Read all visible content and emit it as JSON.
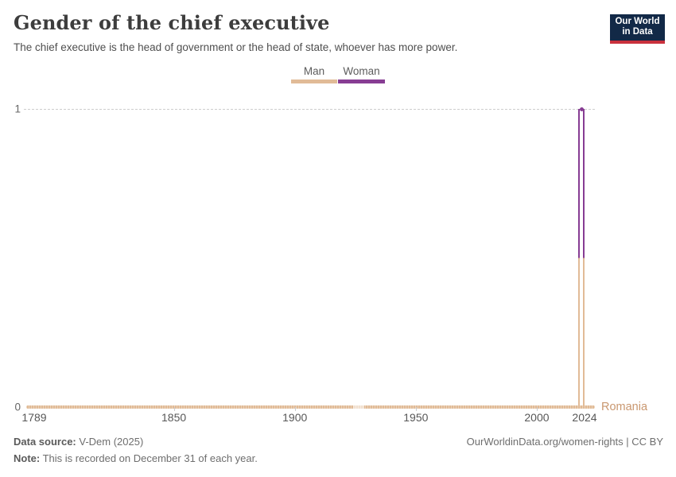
{
  "header": {
    "title": "Gender of the chief executive",
    "subtitle": "The chief executive is the head of government or the head of state, whoever has more power.",
    "logo_line1": "Our World",
    "logo_line2": "in Data"
  },
  "legend": [
    {
      "label": "Man",
      "color": "#E1BB97"
    },
    {
      "label": "Woman",
      "color": "#873D93"
    }
  ],
  "chart_data": {
    "type": "line",
    "title": "Gender of the chief executive",
    "entity": "Romania",
    "x_range": [
      1789,
      2024
    ],
    "y_range": [
      0,
      1
    ],
    "x_ticks": [
      1789,
      1850,
      1900,
      1950,
      2000,
      2024
    ],
    "y_ticks": [
      "0",
      "1"
    ],
    "value_encoding": {
      "0": "Man",
      "1": "Woman"
    },
    "series": [
      {
        "name": "Romania",
        "segments": [
          {
            "from": 1789,
            "to": 2017,
            "value": 0
          },
          {
            "from": 2018,
            "to": 2018,
            "value": 1
          },
          {
            "from": 2019,
            "to": 2024,
            "value": 0
          }
        ]
      }
    ],
    "sparse_segment": {
      "from": 1924,
      "to": 1928
    },
    "colors": {
      "man": "#E1BB97",
      "woman": "#873D93",
      "entity_label": "#C9976F"
    },
    "grid": "single dashed horizontal gridline at y=1, legend top-center"
  },
  "footer": {
    "source_label": "Data source:",
    "source_value": " V-Dem (2025)",
    "note_label": "Note:",
    "note_value": " This is recorded on December 31 of each year.",
    "link": "OurWorldinData.org/women-rights | CC BY"
  }
}
